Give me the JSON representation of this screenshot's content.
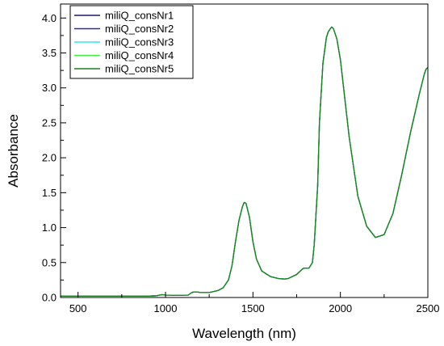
{
  "chart_data": {
    "type": "line",
    "title": "",
    "xlabel": "Wavelength (nm)",
    "ylabel": "Absorbance",
    "xlim": [
      400,
      2500
    ],
    "ylim": [
      0,
      4.2
    ],
    "x_ticks": [
      500,
      1000,
      1500,
      2000,
      2500
    ],
    "y_ticks": [
      0.0,
      0.5,
      1.0,
      1.5,
      2.0,
      2.5,
      3.0,
      3.5,
      4.0
    ],
    "x_tick_labels": [
      "500",
      "1000",
      "1500",
      "2000",
      "2500"
    ],
    "y_tick_labels": [
      "0.0",
      "0.5",
      "1.0",
      "1.5",
      "2.0",
      "2.5",
      "3.0",
      "3.5",
      "4.0"
    ],
    "grid": false,
    "legend_position": "top-left",
    "x": [
      400,
      500,
      600,
      700,
      800,
      900,
      950,
      980,
      1000,
      1050,
      1100,
      1130,
      1150,
      1160,
      1180,
      1200,
      1250,
      1300,
      1330,
      1360,
      1380,
      1400,
      1420,
      1440,
      1450,
      1460,
      1480,
      1500,
      1520,
      1550,
      1600,
      1650,
      1680,
      1700,
      1750,
      1780,
      1790,
      1800,
      1820,
      1840,
      1850,
      1870,
      1880,
      1900,
      1920,
      1930,
      1940,
      1950,
      1960,
      1980,
      2000,
      2050,
      2100,
      2150,
      2200,
      2250,
      2300,
      2350,
      2400,
      2450,
      2480,
      2490,
      2500
    ],
    "series": [
      {
        "name": "miliQ_consNr1",
        "color": "#1a1a6e",
        "values": [
          0.02,
          0.02,
          0.02,
          0.02,
          0.02,
          0.02,
          0.025,
          0.04,
          0.035,
          0.03,
          0.03,
          0.035,
          0.07,
          0.08,
          0.08,
          0.07,
          0.07,
          0.1,
          0.14,
          0.25,
          0.45,
          0.8,
          1.1,
          1.3,
          1.36,
          1.35,
          1.15,
          0.8,
          0.55,
          0.38,
          0.3,
          0.27,
          0.265,
          0.27,
          0.33,
          0.4,
          0.42,
          0.42,
          0.42,
          0.5,
          0.75,
          1.6,
          2.5,
          3.35,
          3.72,
          3.8,
          3.84,
          3.87,
          3.85,
          3.7,
          3.4,
          2.3,
          1.45,
          1.02,
          0.86,
          0.9,
          1.2,
          1.75,
          2.35,
          2.9,
          3.2,
          3.27,
          3.29
        ]
      },
      {
        "name": "miliQ_consNr2",
        "color": "#2a2ab8",
        "values": [
          0.02,
          0.02,
          0.02,
          0.02,
          0.02,
          0.02,
          0.025,
          0.04,
          0.035,
          0.03,
          0.03,
          0.035,
          0.07,
          0.08,
          0.08,
          0.07,
          0.07,
          0.1,
          0.14,
          0.25,
          0.45,
          0.8,
          1.1,
          1.3,
          1.36,
          1.35,
          1.15,
          0.8,
          0.55,
          0.38,
          0.3,
          0.27,
          0.265,
          0.27,
          0.33,
          0.4,
          0.42,
          0.42,
          0.42,
          0.5,
          0.75,
          1.6,
          2.5,
          3.35,
          3.72,
          3.8,
          3.84,
          3.87,
          3.85,
          3.7,
          3.4,
          2.3,
          1.45,
          1.02,
          0.86,
          0.9,
          1.2,
          1.75,
          2.35,
          2.9,
          3.2,
          3.27,
          3.29
        ]
      },
      {
        "name": "miliQ_consNr3",
        "color": "#33e6f2",
        "values": [
          0.02,
          0.02,
          0.02,
          0.02,
          0.02,
          0.02,
          0.025,
          0.04,
          0.035,
          0.03,
          0.03,
          0.035,
          0.07,
          0.08,
          0.08,
          0.07,
          0.07,
          0.1,
          0.14,
          0.25,
          0.45,
          0.8,
          1.1,
          1.3,
          1.36,
          1.35,
          1.15,
          0.8,
          0.55,
          0.38,
          0.3,
          0.27,
          0.265,
          0.27,
          0.33,
          0.4,
          0.42,
          0.42,
          0.42,
          0.5,
          0.75,
          1.6,
          2.5,
          3.35,
          3.72,
          3.8,
          3.84,
          3.87,
          3.85,
          3.7,
          3.4,
          2.3,
          1.45,
          1.02,
          0.86,
          0.9,
          1.2,
          1.75,
          2.35,
          2.9,
          3.2,
          3.27,
          3.29
        ]
      },
      {
        "name": "miliQ_consNr4",
        "color": "#44ee44",
        "values": [
          0.02,
          0.02,
          0.02,
          0.02,
          0.02,
          0.02,
          0.025,
          0.04,
          0.035,
          0.03,
          0.03,
          0.035,
          0.07,
          0.08,
          0.08,
          0.07,
          0.07,
          0.1,
          0.14,
          0.25,
          0.45,
          0.8,
          1.1,
          1.3,
          1.36,
          1.35,
          1.15,
          0.8,
          0.55,
          0.38,
          0.3,
          0.27,
          0.265,
          0.27,
          0.33,
          0.4,
          0.42,
          0.42,
          0.42,
          0.5,
          0.75,
          1.6,
          2.5,
          3.35,
          3.72,
          3.8,
          3.84,
          3.87,
          3.85,
          3.7,
          3.4,
          2.3,
          1.45,
          1.02,
          0.86,
          0.9,
          1.2,
          1.75,
          2.35,
          2.9,
          3.2,
          3.27,
          3.29
        ]
      },
      {
        "name": "miliQ_consNr5",
        "color": "#1e7f1e",
        "values": [
          0.02,
          0.02,
          0.02,
          0.02,
          0.02,
          0.02,
          0.025,
          0.04,
          0.035,
          0.03,
          0.03,
          0.035,
          0.07,
          0.08,
          0.08,
          0.07,
          0.07,
          0.1,
          0.14,
          0.25,
          0.45,
          0.8,
          1.1,
          1.3,
          1.36,
          1.35,
          1.15,
          0.8,
          0.55,
          0.38,
          0.3,
          0.27,
          0.265,
          0.27,
          0.33,
          0.4,
          0.42,
          0.42,
          0.42,
          0.5,
          0.75,
          1.6,
          2.5,
          3.35,
          3.72,
          3.8,
          3.84,
          3.87,
          3.85,
          3.7,
          3.4,
          2.3,
          1.45,
          1.02,
          0.86,
          0.9,
          1.2,
          1.75,
          2.35,
          2.9,
          3.2,
          3.27,
          3.29
        ]
      }
    ]
  }
}
